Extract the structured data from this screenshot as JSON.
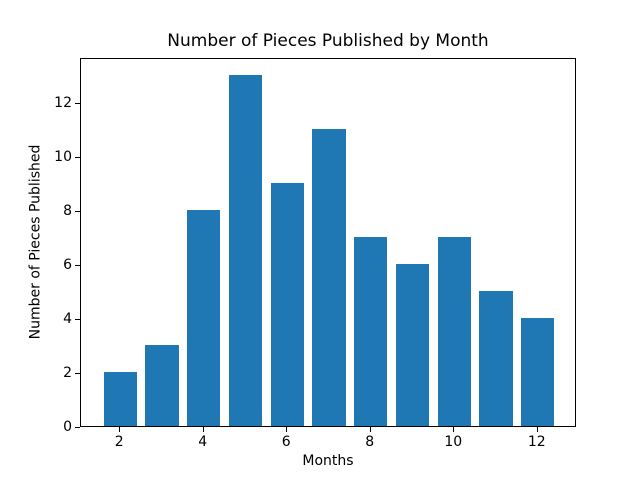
{
  "chart_data": {
    "type": "bar",
    "title": "Number of Pieces Published by Month",
    "xlabel": "Months",
    "ylabel": "Number of Pieces Published",
    "categories": [
      2,
      3,
      4,
      5,
      6,
      7,
      8,
      9,
      10,
      11,
      12
    ],
    "values": [
      2,
      3,
      8,
      13,
      9,
      11,
      7,
      6,
      7,
      5,
      4
    ],
    "x_ticks": [
      2,
      4,
      6,
      8,
      10,
      12
    ],
    "y_ticks": [
      0,
      2,
      4,
      6,
      8,
      10,
      12
    ],
    "xlim": [
      1.06,
      12.94
    ],
    "ylim": [
      0,
      13.65
    ],
    "bar_width_units": 0.8,
    "bar_color": "#1f77b4",
    "grid": false,
    "legend_position": "none"
  }
}
